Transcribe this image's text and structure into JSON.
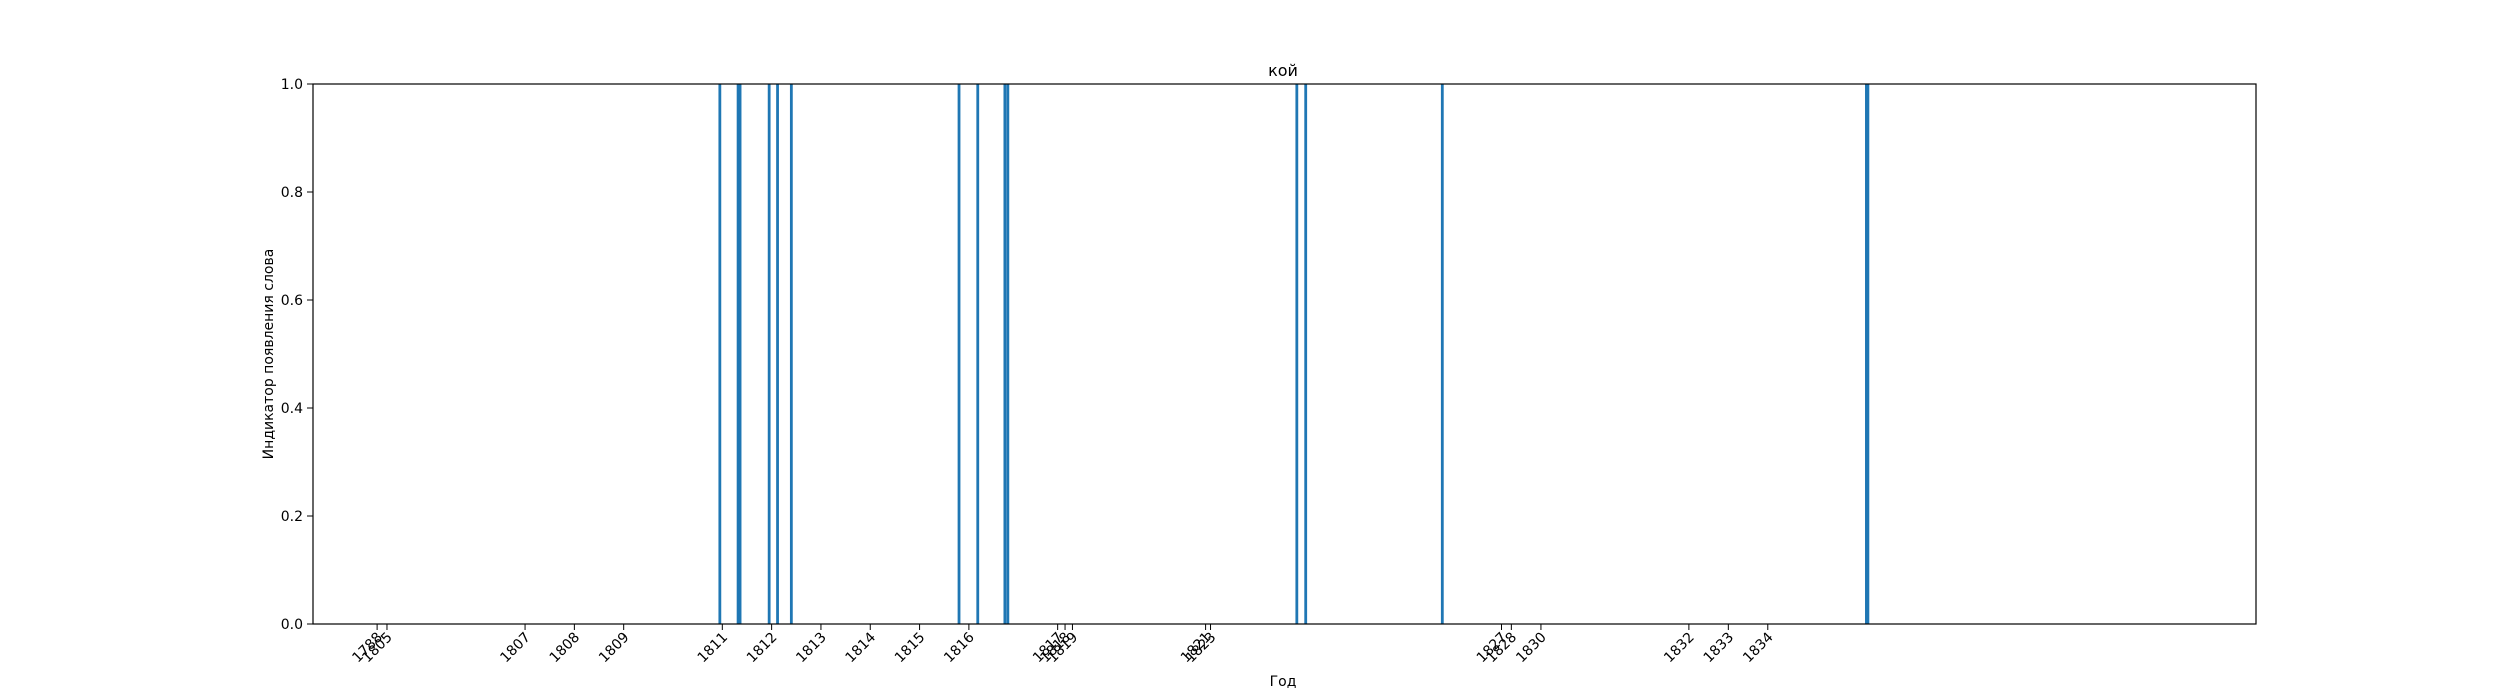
{
  "chart_data": {
    "type": "bar",
    "title": "кой",
    "xlabel": "Год",
    "ylabel": "Индикатор появления слова",
    "ylim": [
      0,
      1
    ],
    "y_ticks": [
      "0.0",
      "0.2",
      "0.4",
      "0.6",
      "0.8",
      "1.0"
    ],
    "x_ticks": [
      {
        "label": "1788",
        "x": 1804.0
      },
      {
        "label": "1805",
        "x": 1804.2
      },
      {
        "label": "1807",
        "x": 1807.0
      },
      {
        "label": "1808",
        "x": 1808.0
      },
      {
        "label": "1809",
        "x": 1809.0
      },
      {
        "label": "1811",
        "x": 1811.0
      },
      {
        "label": "1812",
        "x": 1812.0
      },
      {
        "label": "1813",
        "x": 1813.0
      },
      {
        "label": "1814",
        "x": 1814.0
      },
      {
        "label": "1815",
        "x": 1815.0
      },
      {
        "label": "1816",
        "x": 1816.0
      },
      {
        "label": "1817",
        "x": 1817.8
      },
      {
        "label": "1818",
        "x": 1817.95
      },
      {
        "label": "1819",
        "x": 1818.1
      },
      {
        "label": "1821",
        "x": 1820.8
      },
      {
        "label": "1823",
        "x": 1820.9
      },
      {
        "label": "1827",
        "x": 1826.8
      },
      {
        "label": "1828",
        "x": 1827.0
      },
      {
        "label": "1830",
        "x": 1827.6
      },
      {
        "label": "1832",
        "x": 1830.6
      },
      {
        "label": "1833",
        "x": 1831.4
      },
      {
        "label": "1834",
        "x": 1832.2
      }
    ],
    "x_range": [
      1802.7,
      1842.1
    ],
    "series": [
      {
        "color": "#1f77b4",
        "points": [
          {
            "x": 1810.95,
            "y": 1
          },
          {
            "x": 1811.32,
            "y": 1
          },
          {
            "x": 1811.36,
            "y": 1
          },
          {
            "x": 1811.95,
            "y": 1
          },
          {
            "x": 1812.12,
            "y": 1
          },
          {
            "x": 1812.4,
            "y": 1
          },
          {
            "x": 1815.8,
            "y": 1
          },
          {
            "x": 1816.18,
            "y": 1
          },
          {
            "x": 1816.73,
            "y": 1
          },
          {
            "x": 1816.79,
            "y": 1
          },
          {
            "x": 1822.65,
            "y": 1
          },
          {
            "x": 1822.83,
            "y": 1
          },
          {
            "x": 1825.6,
            "y": 1
          },
          {
            "x": 1834.2,
            "y": 1
          },
          {
            "x": 1834.23,
            "y": 1
          }
        ]
      }
    ]
  }
}
